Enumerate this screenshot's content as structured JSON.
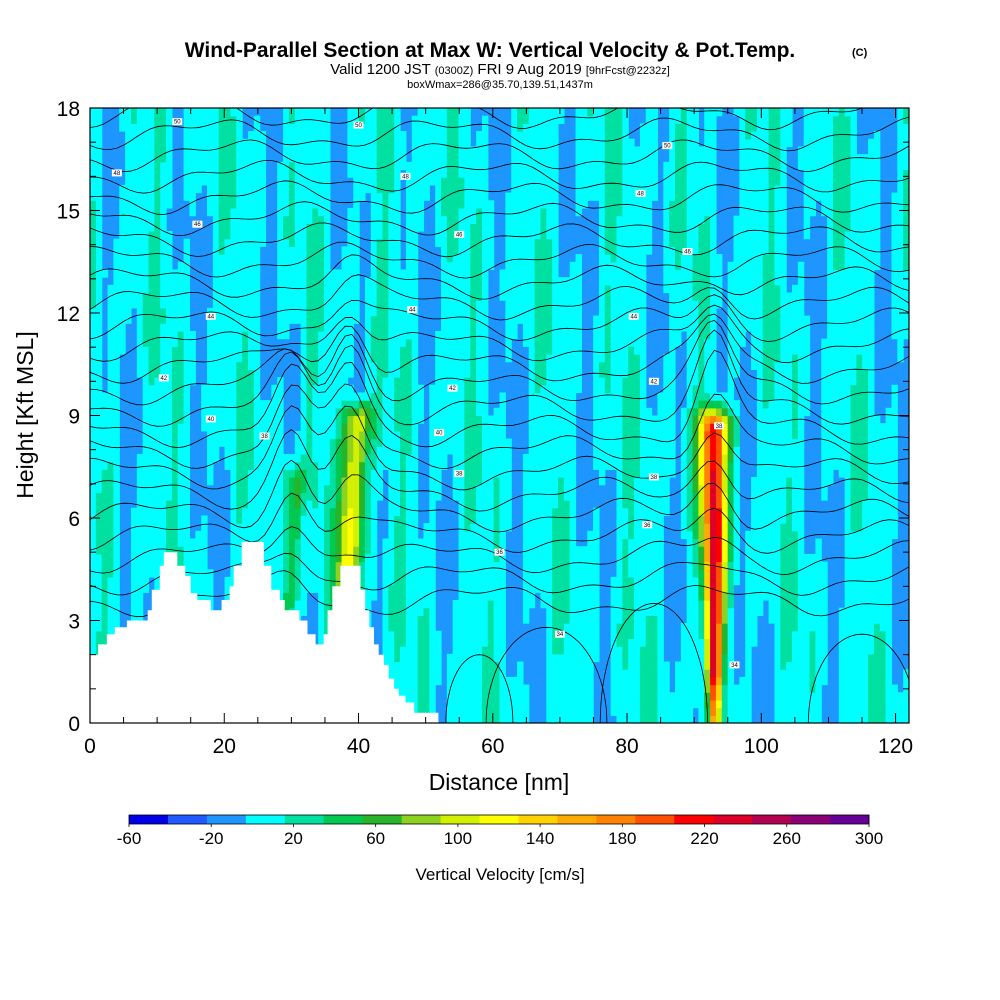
{
  "chart_data": {
    "type": "heatmap",
    "title": "Wind-Parallel Section at Max W: Vertical Velocity & Pot.Temp.",
    "title_mark": "(C)",
    "subtitle_parts": [
      "Valid 1200 JST",
      "(0300Z)",
      "FRI 9 Aug 2019",
      "[9hrFcst@2232z]"
    ],
    "subtitle2": "boxWmax=286@35.70,139.51,1437m",
    "xlabel": "Distance [nm]",
    "ylabel": "Height [Kft MSL]",
    "xlim": [
      0,
      122
    ],
    "ylim": [
      0,
      18
    ],
    "x_ticks": [
      0,
      20,
      40,
      60,
      80,
      100,
      120
    ],
    "y_ticks": [
      0,
      3,
      6,
      9,
      12,
      15,
      18
    ],
    "grid": false,
    "colorbar": {
      "label": "Vertical Velocity [cm/s]",
      "min": -60,
      "max": 300,
      "step": 20,
      "tick_labels": [
        -60,
        -20,
        20,
        60,
        100,
        140,
        180,
        220,
        260,
        300
      ],
      "colors": [
        "#0000e6",
        "#1e5aff",
        "#1e96ff",
        "#00ffff",
        "#00e0a0",
        "#00c850",
        "#28b428",
        "#8cd21e",
        "#d2f000",
        "#ffff00",
        "#ffd200",
        "#ffaa00",
        "#ff8200",
        "#ff5000",
        "#ff0000",
        "#dc0028",
        "#b40050",
        "#8c0078",
        "#640096"
      ]
    },
    "updrafts": [
      {
        "x": 38.7,
        "z_top": 8.8,
        "w_max": 130
      },
      {
        "x": 93.0,
        "z_top": 8.6,
        "w_max": 230
      },
      {
        "x": 30.0,
        "z_top": 7.0,
        "w_max": 60
      }
    ],
    "theta_contour_labels": [
      {
        "x": 13,
        "z": 17.6,
        "text": "50"
      },
      {
        "x": 40,
        "z": 17.5,
        "text": "50"
      },
      {
        "x": 86,
        "z": 16.9,
        "text": "50"
      },
      {
        "x": 4,
        "z": 16.1,
        "text": "48"
      },
      {
        "x": 47,
        "z": 16.0,
        "text": "48"
      },
      {
        "x": 82,
        "z": 15.5,
        "text": "48"
      },
      {
        "x": 16,
        "z": 14.6,
        "text": "46"
      },
      {
        "x": 55,
        "z": 14.3,
        "text": "46"
      },
      {
        "x": 89,
        "z": 13.8,
        "text": "46"
      },
      {
        "x": 18,
        "z": 11.9,
        "text": "44"
      },
      {
        "x": 48,
        "z": 12.1,
        "text": "44"
      },
      {
        "x": 81,
        "z": 11.9,
        "text": "44"
      },
      {
        "x": 11,
        "z": 10.1,
        "text": "42"
      },
      {
        "x": 54,
        "z": 9.8,
        "text": "42"
      },
      {
        "x": 84,
        "z": 10.0,
        "text": "42"
      },
      {
        "x": 18,
        "z": 8.9,
        "text": "40"
      },
      {
        "x": 52,
        "z": 8.5,
        "text": "40"
      },
      {
        "x": 26,
        "z": 8.4,
        "text": "38"
      },
      {
        "x": 55,
        "z": 7.3,
        "text": "38"
      },
      {
        "x": 84,
        "z": 7.2,
        "text": "38"
      },
      {
        "x": 93.7,
        "z": 8.7,
        "text": "38"
      },
      {
        "x": 83,
        "z": 5.8,
        "text": "36"
      },
      {
        "x": 61,
        "z": 5.0,
        "text": "36"
      },
      {
        "x": 70,
        "z": 2.6,
        "text": "34"
      },
      {
        "x": 96,
        "z": 1.7,
        "text": "34"
      }
    ],
    "terrain_profile": [
      {
        "x": 0,
        "z": 2.0
      },
      {
        "x": 1.2,
        "z": 2.0
      },
      {
        "x": 1.2,
        "z": 2.3
      },
      {
        "x": 2.5,
        "z": 2.3
      },
      {
        "x": 2.5,
        "z": 2.6
      },
      {
        "x": 3.7,
        "z": 2.6
      },
      {
        "x": 3.7,
        "z": 2.8
      },
      {
        "x": 5.5,
        "z": 2.8
      },
      {
        "x": 5.5,
        "z": 3.0
      },
      {
        "x": 8.6,
        "z": 3.0
      },
      {
        "x": 8.6,
        "z": 3.3
      },
      {
        "x": 9.2,
        "z": 3.3
      },
      {
        "x": 9.2,
        "z": 3.9
      },
      {
        "x": 10.4,
        "z": 3.9
      },
      {
        "x": 10.4,
        "z": 4.6
      },
      {
        "x": 11.0,
        "z": 4.6
      },
      {
        "x": 11.0,
        "z": 5.0
      },
      {
        "x": 13.0,
        "z": 5.0
      },
      {
        "x": 13.0,
        "z": 4.6
      },
      {
        "x": 14.2,
        "z": 4.6
      },
      {
        "x": 14.2,
        "z": 4.3
      },
      {
        "x": 15.0,
        "z": 4.3
      },
      {
        "x": 15.0,
        "z": 3.8
      },
      {
        "x": 16.0,
        "z": 3.8
      },
      {
        "x": 16.0,
        "z": 3.6
      },
      {
        "x": 18.0,
        "z": 3.6
      },
      {
        "x": 18.0,
        "z": 3.3
      },
      {
        "x": 19.6,
        "z": 3.3
      },
      {
        "x": 19.6,
        "z": 3.6
      },
      {
        "x": 20.8,
        "z": 3.6
      },
      {
        "x": 20.8,
        "z": 4.0
      },
      {
        "x": 21.4,
        "z": 4.0
      },
      {
        "x": 21.4,
        "z": 4.6
      },
      {
        "x": 22.6,
        "z": 4.6
      },
      {
        "x": 22.6,
        "z": 5.3
      },
      {
        "x": 25.9,
        "z": 5.3
      },
      {
        "x": 25.9,
        "z": 4.6
      },
      {
        "x": 27.0,
        "z": 4.6
      },
      {
        "x": 27.0,
        "z": 3.9
      },
      {
        "x": 28.3,
        "z": 3.9
      },
      {
        "x": 28.3,
        "z": 3.6
      },
      {
        "x": 29.0,
        "z": 3.6
      },
      {
        "x": 29.0,
        "z": 3.3
      },
      {
        "x": 31.2,
        "z": 3.3
      },
      {
        "x": 31.2,
        "z": 3.0
      },
      {
        "x": 32.4,
        "z": 3.0
      },
      {
        "x": 32.4,
        "z": 2.6
      },
      {
        "x": 33.6,
        "z": 2.6
      },
      {
        "x": 33.6,
        "z": 2.3
      },
      {
        "x": 34.8,
        "z": 2.3
      },
      {
        "x": 34.8,
        "z": 2.6
      },
      {
        "x": 35.4,
        "z": 2.6
      },
      {
        "x": 35.4,
        "z": 3.3
      },
      {
        "x": 36.1,
        "z": 3.3
      },
      {
        "x": 36.1,
        "z": 4.0
      },
      {
        "x": 37.3,
        "z": 4.0
      },
      {
        "x": 37.3,
        "z": 4.6
      },
      {
        "x": 40.3,
        "z": 4.6
      },
      {
        "x": 40.3,
        "z": 3.9
      },
      {
        "x": 41.0,
        "z": 3.9
      },
      {
        "x": 41.0,
        "z": 3.3
      },
      {
        "x": 41.6,
        "z": 3.3
      },
      {
        "x": 41.6,
        "z": 2.8
      },
      {
        "x": 42.3,
        "z": 2.8
      },
      {
        "x": 42.3,
        "z": 2.3
      },
      {
        "x": 43.0,
        "z": 2.3
      },
      {
        "x": 43.0,
        "z": 2.0
      },
      {
        "x": 43.8,
        "z": 2.0
      },
      {
        "x": 43.8,
        "z": 1.7
      },
      {
        "x": 44.5,
        "z": 1.7
      },
      {
        "x": 44.5,
        "z": 1.3
      },
      {
        "x": 45.3,
        "z": 1.3
      },
      {
        "x": 45.3,
        "z": 1.0
      },
      {
        "x": 46.0,
        "z": 1.0
      },
      {
        "x": 46.0,
        "z": 0.8
      },
      {
        "x": 47.0,
        "z": 0.8
      },
      {
        "x": 47.0,
        "z": 0.6
      },
      {
        "x": 48.3,
        "z": 0.6
      },
      {
        "x": 48.3,
        "z": 0.3
      },
      {
        "x": 51.9,
        "z": 0.3
      },
      {
        "x": 51.9,
        "z": 0.0
      }
    ]
  }
}
